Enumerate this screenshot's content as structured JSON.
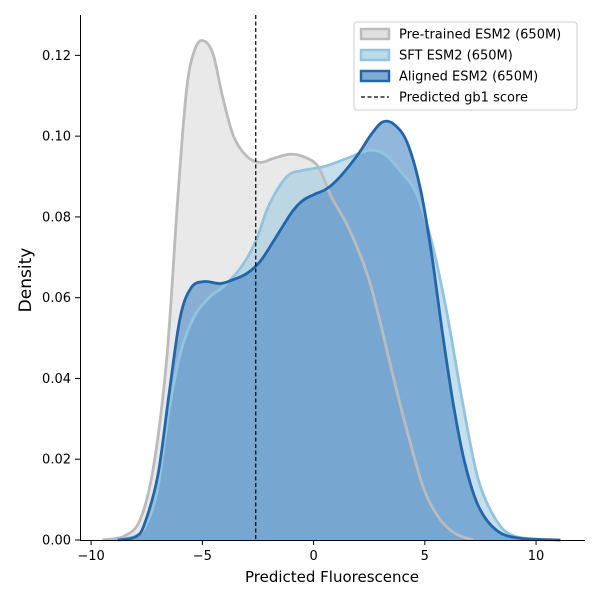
{
  "chart_data": {
    "type": "area",
    "title": "",
    "xlabel": "Predicted Fluorescence",
    "ylabel": "Density",
    "xlim": [
      -10.5,
      12.2
    ],
    "ylim": [
      0,
      0.13
    ],
    "xticks": [
      -10,
      -5,
      0,
      5,
      10
    ],
    "yticks": [
      0.0,
      0.02,
      0.04,
      0.06,
      0.08,
      0.1,
      0.12
    ],
    "xtick_labels": [
      "−10",
      "−5",
      "0",
      "5",
      "10"
    ],
    "ytick_labels": [
      "0.00",
      "0.02",
      "0.04",
      "0.06",
      "0.08",
      "0.10",
      "0.12"
    ],
    "grid": false,
    "legend_position": "top-right",
    "series": [
      {
        "name": "Pre-trained ESM2 (650M)",
        "line_color": "#bbbbbb",
        "fill_color": "#d3d3d3",
        "points": [
          [
            -9.5,
            0
          ],
          [
            -8.5,
            0.001
          ],
          [
            -7.8,
            0.005
          ],
          [
            -7.2,
            0.018
          ],
          [
            -6.6,
            0.045
          ],
          [
            -6.1,
            0.085
          ],
          [
            -5.7,
            0.112
          ],
          [
            -5.3,
            0.122
          ],
          [
            -4.9,
            0.1235
          ],
          [
            -4.5,
            0.12
          ],
          [
            -4.1,
            0.11
          ],
          [
            -3.6,
            0.1
          ],
          [
            -3.0,
            0.095
          ],
          [
            -2.4,
            0.0935
          ],
          [
            -1.8,
            0.0945
          ],
          [
            -1.1,
            0.0955
          ],
          [
            -0.5,
            0.095
          ],
          [
            0.2,
            0.0925
          ],
          [
            0.8,
            0.085
          ],
          [
            1.6,
            0.077
          ],
          [
            2.4,
            0.066
          ],
          [
            2.9,
            0.056
          ],
          [
            3.6,
            0.04
          ],
          [
            4.3,
            0.025
          ],
          [
            5.0,
            0.012
          ],
          [
            5.7,
            0.005
          ],
          [
            6.4,
            0.0015
          ],
          [
            7.2,
            0
          ]
        ]
      },
      {
        "name": "SFT ESM2 (650M)",
        "line_color": "#93c4de",
        "fill_color": "#9ecae1",
        "points": [
          [
            -9,
            0
          ],
          [
            -8,
            0.001
          ],
          [
            -7.5,
            0.004
          ],
          [
            -7.0,
            0.013
          ],
          [
            -6.5,
            0.032
          ],
          [
            -6.0,
            0.046
          ],
          [
            -5.4,
            0.055
          ],
          [
            -4.7,
            0.06
          ],
          [
            -4.0,
            0.063
          ],
          [
            -3.2,
            0.068
          ],
          [
            -2.6,
            0.074
          ],
          [
            -2.0,
            0.083
          ],
          [
            -1.2,
            0.09
          ],
          [
            -0.5,
            0.0915
          ],
          [
            0.5,
            0.0925
          ],
          [
            1.5,
            0.0945
          ],
          [
            2.5,
            0.0965
          ],
          [
            3.2,
            0.0955
          ],
          [
            3.8,
            0.092
          ],
          [
            4.6,
            0.086
          ],
          [
            5.3,
            0.074
          ],
          [
            6.0,
            0.056
          ],
          [
            6.7,
            0.034
          ],
          [
            7.4,
            0.015
          ],
          [
            8.2,
            0.005
          ],
          [
            9.0,
            0.001
          ],
          [
            10.5,
            0
          ]
        ]
      },
      {
        "name": "Aligned ESM2 (650M)",
        "line_color": "#2166ac",
        "fill_color": "#4a87c4",
        "points": [
          [
            -8.8,
            0
          ],
          [
            -8,
            0.0008
          ],
          [
            -7.6,
            0.004
          ],
          [
            -7.0,
            0.016
          ],
          [
            -6.5,
            0.036
          ],
          [
            -6.0,
            0.055
          ],
          [
            -5.5,
            0.0625
          ],
          [
            -4.9,
            0.064
          ],
          [
            -4.2,
            0.0635
          ],
          [
            -3.6,
            0.0645
          ],
          [
            -3.0,
            0.066
          ],
          [
            -2.4,
            0.069
          ],
          [
            -1.8,
            0.074
          ],
          [
            -1.0,
            0.081
          ],
          [
            -0.5,
            0.084
          ],
          [
            0,
            0.0855
          ],
          [
            0.6,
            0.087
          ],
          [
            1.2,
            0.09
          ],
          [
            2.0,
            0.0955
          ],
          [
            2.6,
            0.1005
          ],
          [
            3.1,
            0.1035
          ],
          [
            3.6,
            0.103
          ],
          [
            4.2,
            0.0985
          ],
          [
            4.8,
            0.087
          ],
          [
            5.3,
            0.071
          ],
          [
            5.8,
            0.051
          ],
          [
            6.3,
            0.033
          ],
          [
            6.8,
            0.019
          ],
          [
            7.4,
            0.0085
          ],
          [
            8.2,
            0.0025
          ],
          [
            9.2,
            0.0005
          ],
          [
            11.1,
            0
          ]
        ]
      }
    ],
    "reference_lines": [
      {
        "name": "Predicted gb1 score",
        "x": -2.6,
        "style": "dashed",
        "color": "#000000"
      }
    ]
  }
}
